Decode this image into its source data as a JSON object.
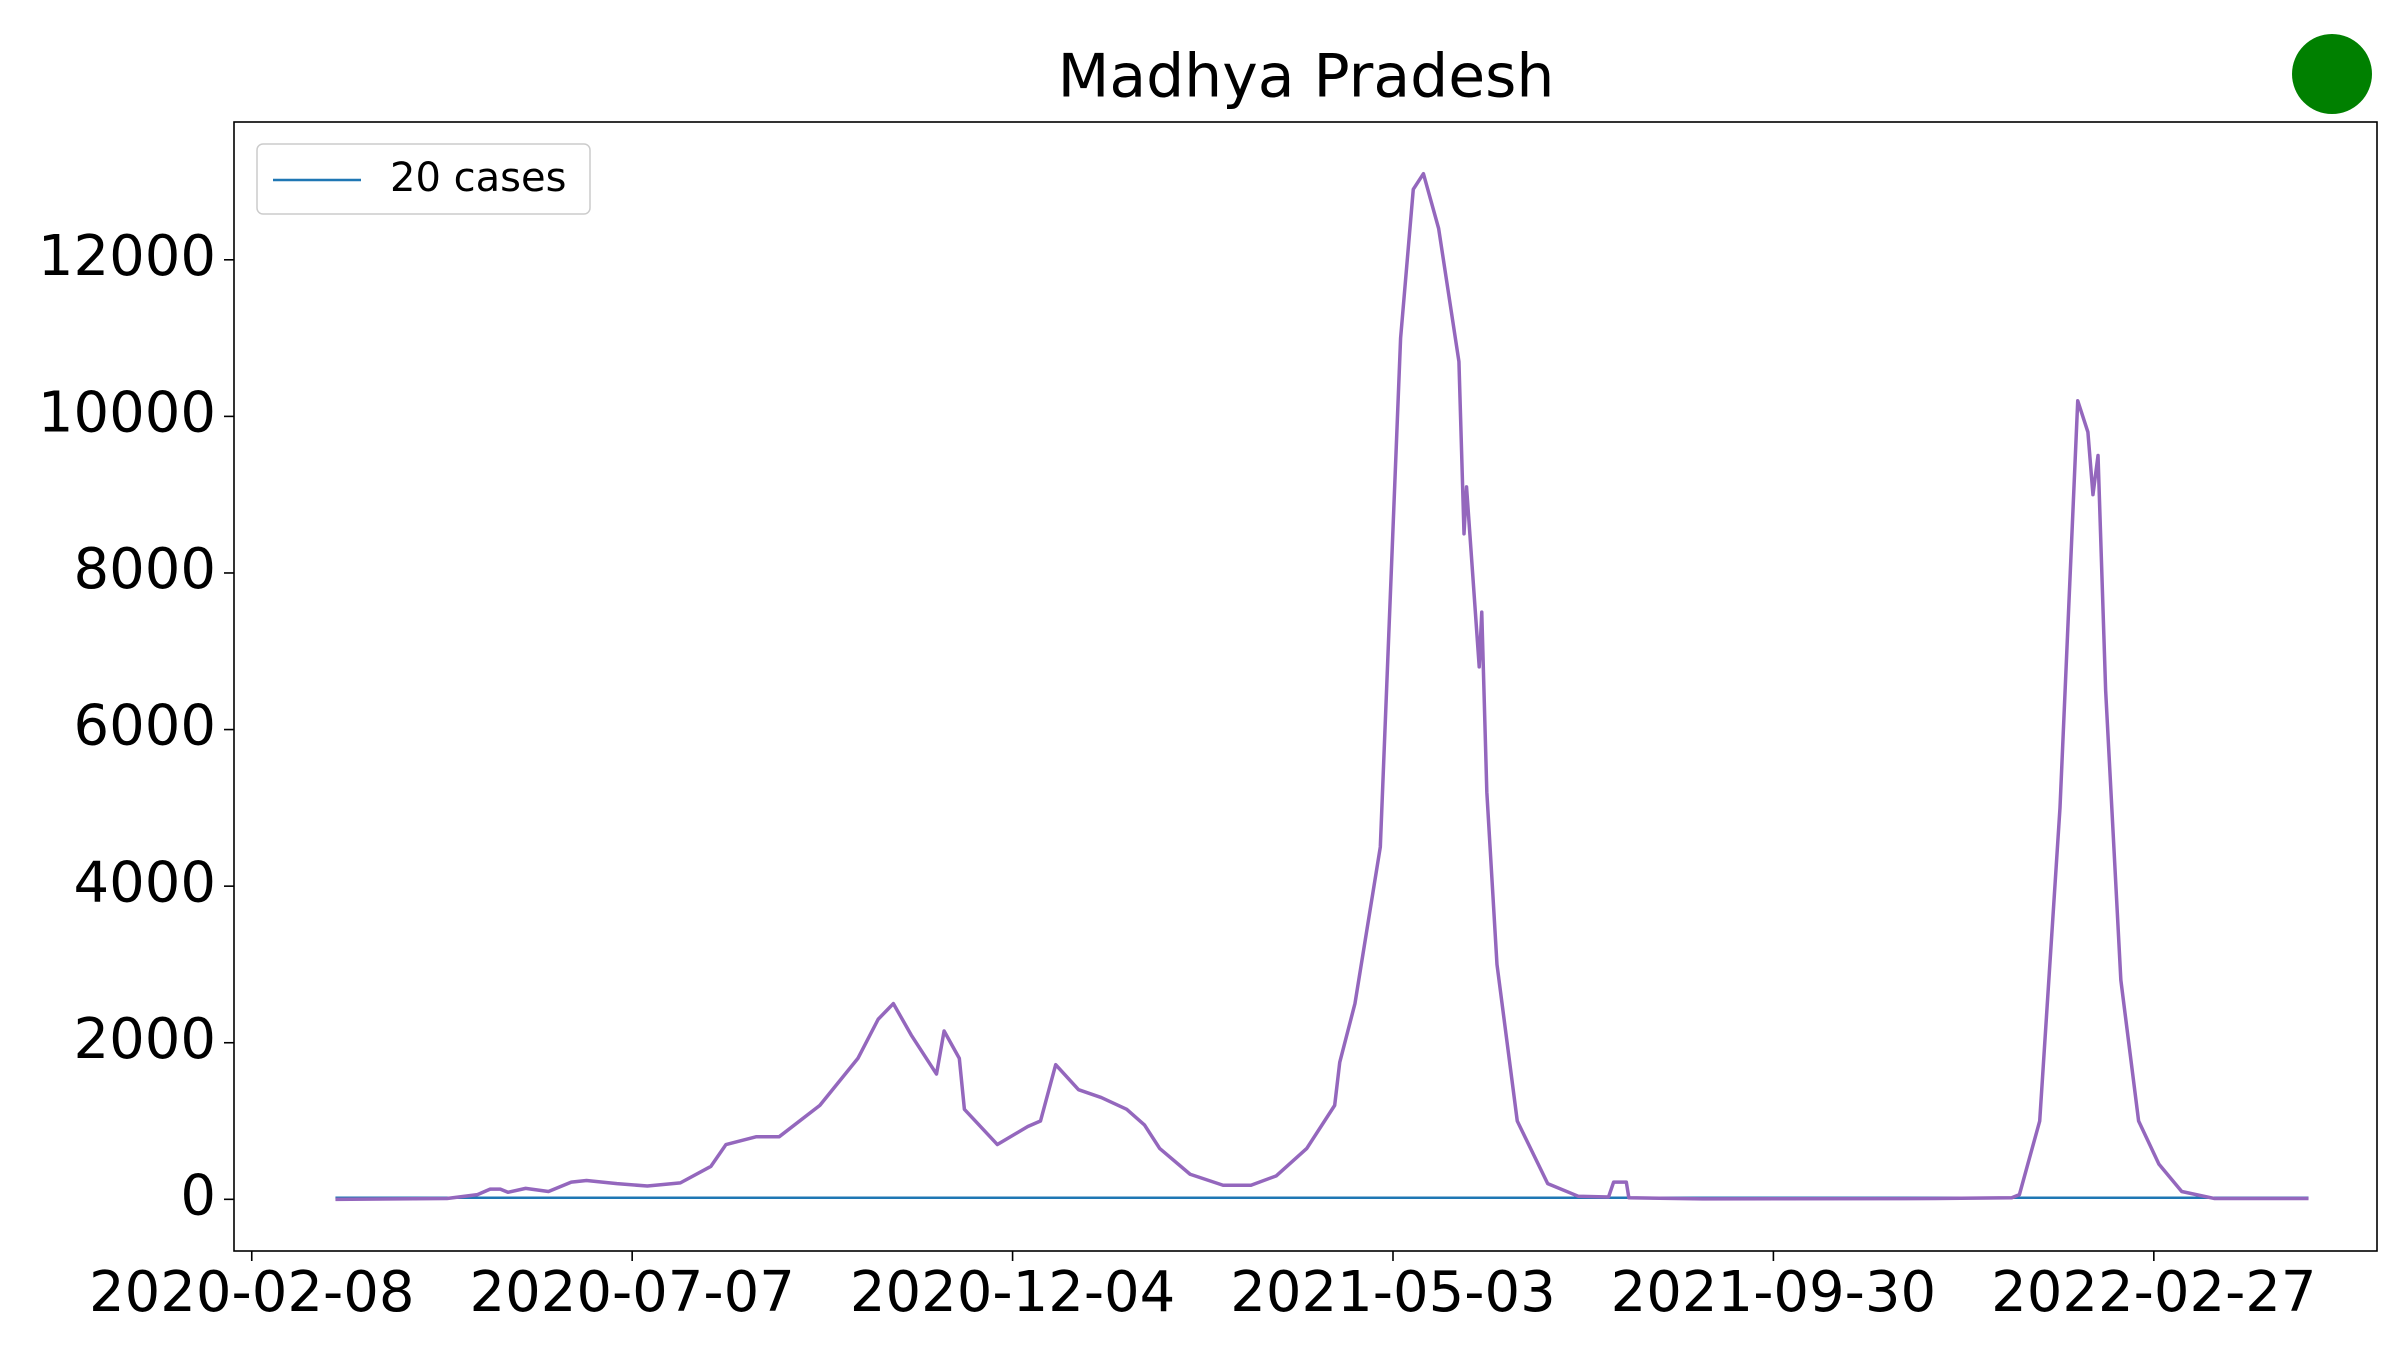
{
  "chart_data": {
    "type": "line",
    "title": "Madhya Pradesh",
    "xlim": [
      "2020-02-01",
      "2022-05-26"
    ],
    "xticks": [
      "2020-02-08",
      "2020-07-07",
      "2020-12-04",
      "2021-05-03",
      "2021-09-30",
      "2022-02-27"
    ],
    "ylim": [
      -660,
      13760
    ],
    "yticks": [
      0,
      2000,
      4000,
      6000,
      8000,
      10000,
      12000
    ],
    "legend": "upper left",
    "series": [
      {
        "name": "20 cases",
        "color": "#1f77b4",
        "x": [
          "2020-03-12",
          "2022-04-29"
        ],
        "values": [
          20,
          20
        ]
      },
      {
        "color": "#9467bd",
        "x": [
          "2020-03-12",
          "2020-04-25",
          "2020-05-07",
          "2020-05-12",
          "2020-05-16",
          "2020-05-19",
          "2020-05-26",
          "2020-06-04",
          "2020-06-13",
          "2020-06-19",
          "2020-07-01",
          "2020-07-13",
          "2020-07-26",
          "2020-08-07",
          "2020-08-13",
          "2020-08-25",
          "2020-09-03",
          "2020-09-19",
          "2020-10-04",
          "2020-10-12",
          "2020-10-18",
          "2020-10-25",
          "2020-11-04",
          "2020-11-07",
          "2020-11-13",
          "2020-11-15",
          "2020-11-28",
          "2020-12-10",
          "2020-12-15",
          "2020-12-21",
          "2020-12-30",
          "2021-01-08",
          "2021-01-18",
          "2021-01-25",
          "2021-01-31",
          "2021-02-12",
          "2021-02-25",
          "2021-03-08",
          "2021-03-18",
          "2021-03-30",
          "2021-04-10",
          "2021-04-12",
          "2021-04-18",
          "2021-04-28",
          "2021-05-06",
          "2021-05-11",
          "2021-05-15",
          "2021-05-21",
          "2021-05-29",
          "2021-05-31",
          "2021-06-01",
          "2021-06-06",
          "2021-06-07",
          "2021-06-09",
          "2021-06-13",
          "2021-06-21",
          "2021-07-03",
          "2021-07-15",
          "2021-07-27",
          "2021-07-29",
          "2021-08-03",
          "2021-08-04",
          "2021-09-02",
          "2021-12-03",
          "2022-01-02",
          "2022-01-05",
          "2022-01-13",
          "2022-01-21",
          "2022-01-28",
          "2022-02-01",
          "2022-02-03",
          "2022-02-05",
          "2022-02-08",
          "2022-02-14",
          "2022-02-21",
          "2022-03-01",
          "2022-03-10",
          "2022-03-23",
          "2022-04-29"
        ],
        "values": [
          0,
          10,
          60,
          130,
          130,
          90,
          140,
          100,
          220,
          240,
          200,
          170,
          210,
          420,
          700,
          800,
          800,
          1200,
          1800,
          2300,
          2500,
          2100,
          1600,
          2150,
          1800,
          1150,
          700,
          930,
          1000,
          1720,
          1400,
          1300,
          1150,
          950,
          650,
          320,
          180,
          180,
          300,
          650,
          1200,
          1750,
          2500,
          4500,
          11000,
          12900,
          13100,
          12400,
          10700,
          8500,
          9100,
          6800,
          7500,
          5200,
          3000,
          1000,
          200,
          40,
          30,
          220,
          220,
          20,
          5,
          10,
          20,
          60,
          1000,
          5000,
          10200,
          9800,
          9000,
          9500,
          6500,
          2800,
          1000,
          450,
          100,
          10,
          10
        ]
      }
    ]
  }
}
